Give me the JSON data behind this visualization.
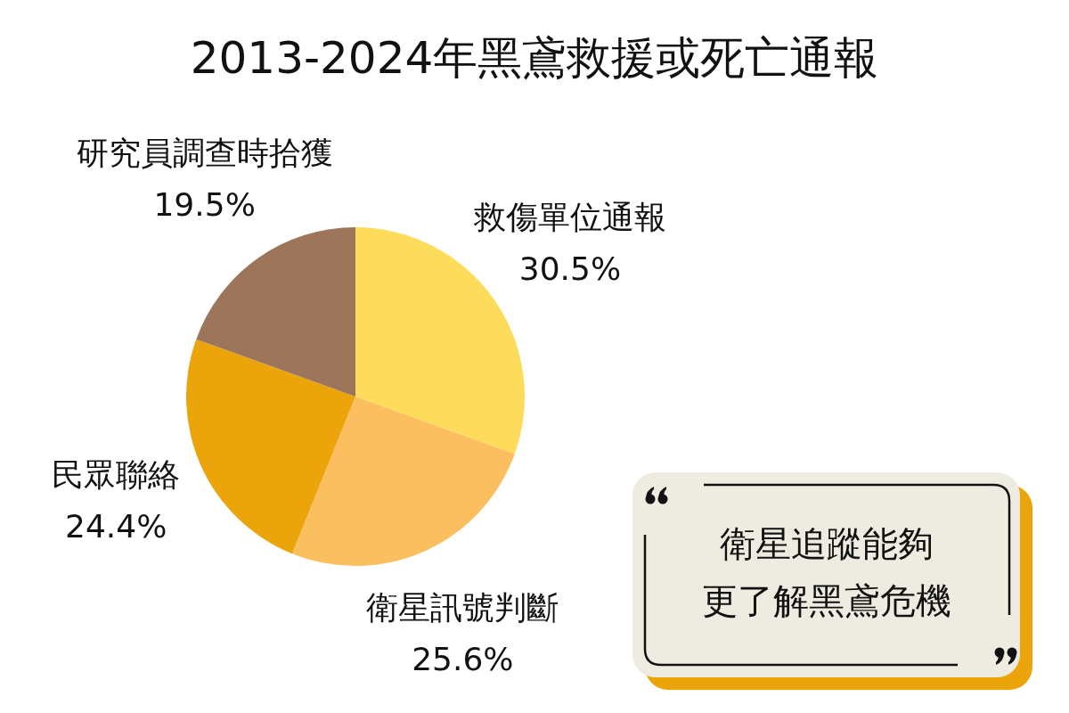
{
  "chart_data": {
    "type": "pie",
    "title": "2013-2024年黑鳶救援或死亡通報",
    "categories": [
      "救傷單位通報",
      "衛星訊號判斷",
      "民眾聯絡",
      "研究員調查時拾獲"
    ],
    "values": [
      30.5,
      25.6,
      24.4,
      19.5
    ],
    "colors": [
      "#fddc5c",
      "#fcbf60",
      "#eba50b",
      "#9d755a"
    ],
    "value_labels": [
      "30.5%",
      "25.6%",
      "24.4%",
      "19.5%"
    ],
    "annotations": [
      "衛星追蹤能夠",
      "更了解黑鳶危機"
    ]
  }
}
